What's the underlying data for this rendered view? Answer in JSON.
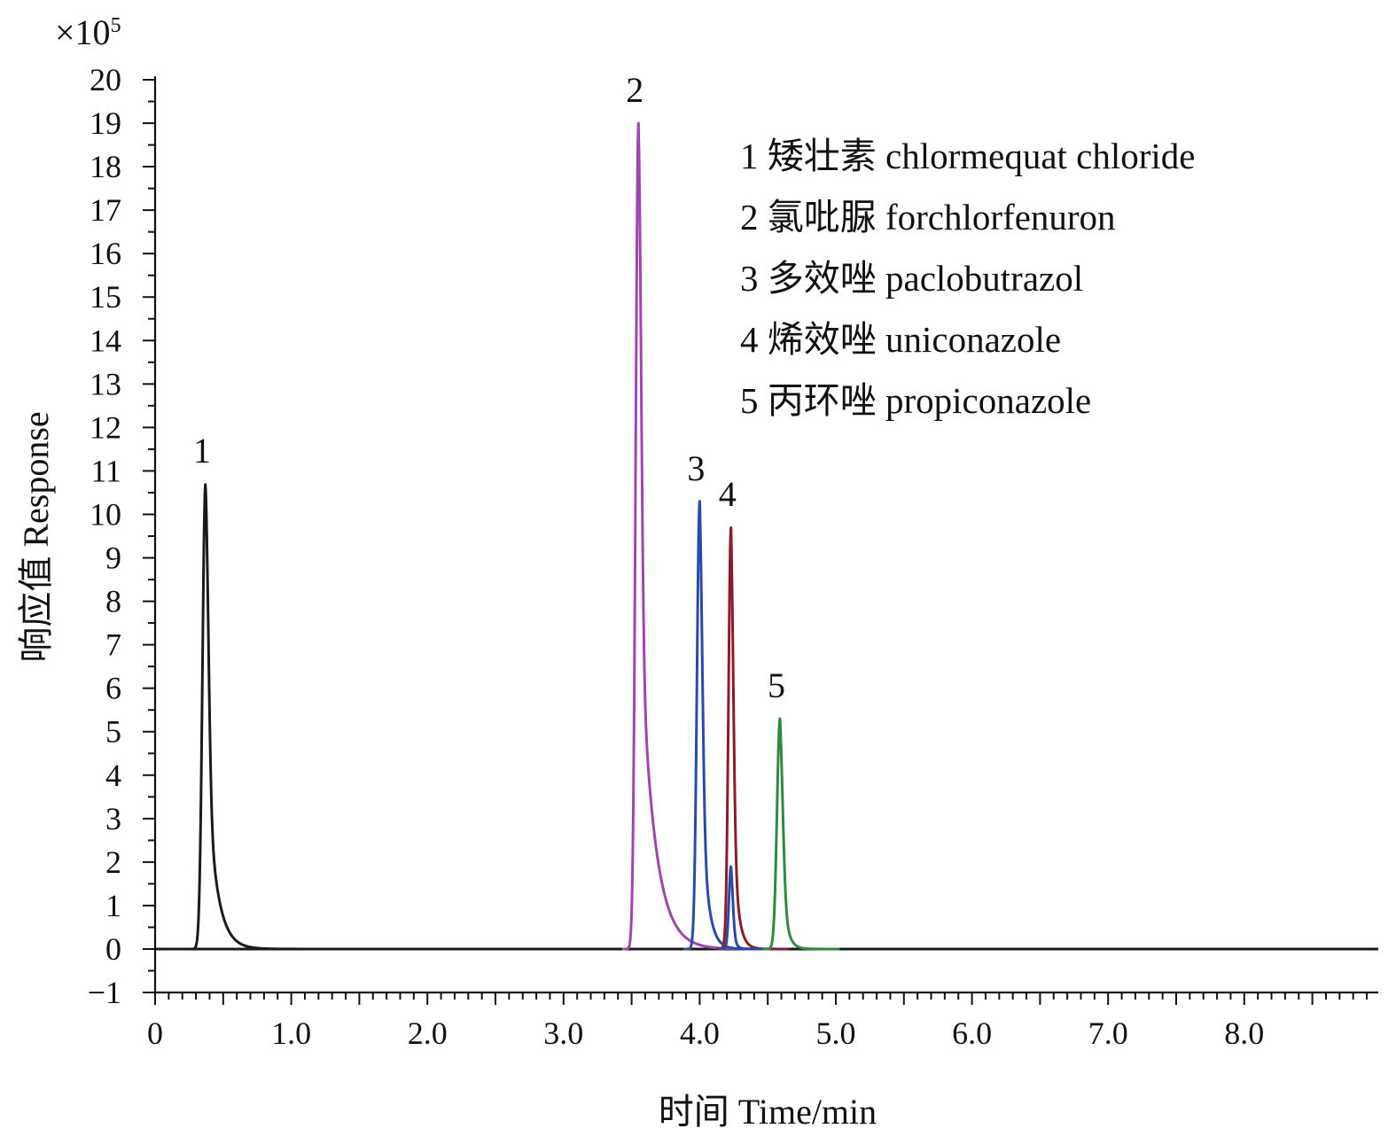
{
  "chart_data": {
    "type": "line",
    "title": "",
    "xlabel": "时间 Time/min",
    "ylabel": "响应值 Response",
    "y_multiplier": "×10",
    "y_multiplier_exponent": "5",
    "xlim": [
      0,
      9.0
    ],
    "ylim": [
      -1,
      20
    ],
    "x_ticks": [
      0,
      1.0,
      2.0,
      3.0,
      4.0,
      5.0,
      6.0,
      7.0,
      8.0
    ],
    "x_tick_labels": [
      "0",
      "1.0",
      "2.0",
      "3.0",
      "4.0",
      "5.0",
      "6.0",
      "7.0",
      "8.0"
    ],
    "y_ticks": [
      -1,
      0,
      1,
      2,
      3,
      4,
      5,
      6,
      7,
      8,
      9,
      10,
      11,
      12,
      13,
      14,
      15,
      16,
      17,
      18,
      19,
      20
    ],
    "y_tick_labels": [
      "−1",
      "0",
      "1",
      "2",
      "3",
      "4",
      "5",
      "6",
      "7",
      "8",
      "9",
      "10",
      "11",
      "12",
      "13",
      "14",
      "15",
      "16",
      "17",
      "18",
      "19",
      "20"
    ],
    "grid": false,
    "legend_position": "top-right",
    "legend": [
      "1 矮壮素 chlormequat chloride",
      "2 氯吡脲 forchlorfenuron",
      "3 多效唑 paclobutrazol",
      "4 烯效唑 uniconazole",
      "5 丙环唑 propiconazole"
    ],
    "series": [
      {
        "label": "1",
        "color": "#1a1a1a",
        "peak_time": 0.37,
        "peak_height": 10.7,
        "rise_sigma": 0.022,
        "tail_width": 0.07
      },
      {
        "label": "2",
        "color": "#a044b0",
        "peak_time": 3.55,
        "peak_height": 19.0,
        "rise_sigma": 0.02,
        "tail_width": 0.1
      },
      {
        "label": "3",
        "color": "#2a4aa8",
        "peak_time": 4.0,
        "peak_height": 10.3,
        "rise_sigma": 0.02,
        "tail_width": 0.045
      },
      {
        "label": "4",
        "color": "#8b1a2b",
        "peak_time": 4.23,
        "peak_height": 9.7,
        "rise_sigma": 0.018,
        "tail_width": 0.035
      },
      {
        "label": "",
        "color": "#2a4aa8",
        "peak_time": 4.23,
        "peak_height": 1.9,
        "rise_sigma": 0.015,
        "tail_width": 0.02
      },
      {
        "label": "5",
        "color": "#2e8a3e",
        "peak_time": 4.59,
        "peak_height": 5.3,
        "rise_sigma": 0.022,
        "tail_width": 0.035
      }
    ],
    "baseline_color": "#1a1a1a"
  }
}
